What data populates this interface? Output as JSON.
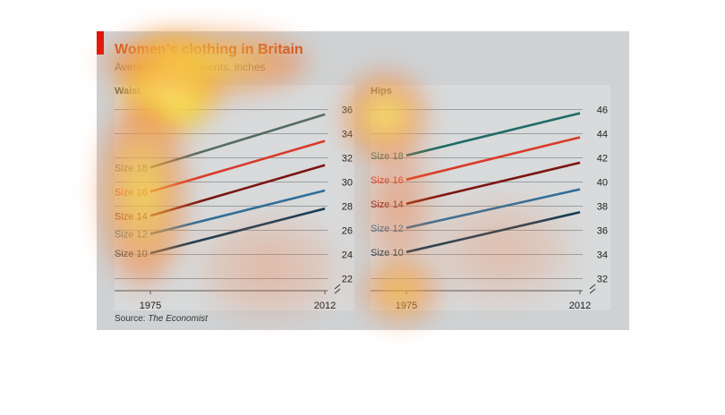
{
  "title": "Women’s clothing in Britain",
  "subtitle": "Average measurements, inches",
  "source_prefix": "Source: ",
  "source_name": "The Economist",
  "colors": {
    "size18_left": "#556b63",
    "size16": "#d93a2a",
    "size14": "#7a1510",
    "size12": "#2f6f9a",
    "size10": "#163c55",
    "size18_right": "#1f6b66"
  },
  "chart_data": [
    {
      "type": "line",
      "title": "Waist",
      "x": [
        "1975",
        "2012"
      ],
      "ylim": [
        21,
        37
      ],
      "y_ticks": [
        "22",
        "24",
        "26",
        "28",
        "30",
        "32",
        "34",
        "36"
      ],
      "series": [
        {
          "name": "Size 18",
          "values": [
            31.2,
            35.6
          ]
        },
        {
          "name": "Size 16",
          "values": [
            29.2,
            33.4
          ]
        },
        {
          "name": "Size 14",
          "values": [
            27.2,
            31.4
          ]
        },
        {
          "name": "Size 12",
          "values": [
            25.7,
            29.3
          ]
        },
        {
          "name": "Size 10",
          "values": [
            24.1,
            27.8
          ]
        }
      ]
    },
    {
      "type": "line",
      "title": "Hips",
      "x": [
        "1975",
        "2012"
      ],
      "ylim": [
        31,
        47
      ],
      "y_ticks": [
        "32",
        "34",
        "36",
        "38",
        "40",
        "42",
        "44",
        "46"
      ],
      "series": [
        {
          "name": "Size 18",
          "values": [
            42.2,
            45.7
          ]
        },
        {
          "name": "Size 16",
          "values": [
            40.2,
            43.7
          ]
        },
        {
          "name": "Size 14",
          "values": [
            38.2,
            41.6
          ]
        },
        {
          "name": "Size 12",
          "values": [
            36.2,
            39.4
          ]
        },
        {
          "name": "Size 10",
          "values": [
            34.2,
            37.5
          ]
        }
      ]
    }
  ]
}
